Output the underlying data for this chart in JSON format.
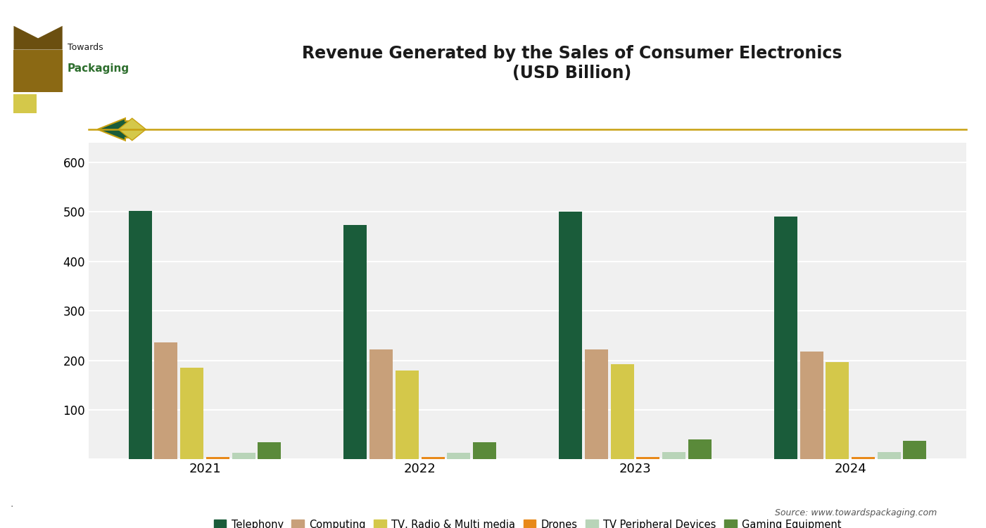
{
  "title": "Revenue Generated by the Sales of Consumer Electronics\n(USD Billion)",
  "years": [
    "2021",
    "2022",
    "2023",
    "2024"
  ],
  "categories": [
    "Telephony",
    "Computing",
    "TV, Radio & Multi media",
    "Drones",
    "TV Peripheral Devices",
    "Gaming Equipment"
  ],
  "values": {
    "Telephony": [
      502,
      473,
      500,
      491
    ],
    "Computing": [
      237,
      222,
      222,
      218
    ],
    "TV, Radio & Multi media": [
      185,
      180,
      192,
      196
    ],
    "Drones": [
      5,
      5,
      5,
      5
    ],
    "TV Peripheral Devices": [
      13,
      13,
      15,
      15
    ],
    "Gaming Equipment": [
      34,
      35,
      40,
      38
    ]
  },
  "colors": {
    "Telephony": "#1a5c3a",
    "Computing": "#c8a07a",
    "TV, Radio & Multi media": "#d4c84a",
    "Drones": "#e8891a",
    "TV Peripheral Devices": "#b8d4b8",
    "Gaming Equipment": "#5a8a3a"
  },
  "ylim": [
    0,
    640
  ],
  "yticks": [
    0,
    100,
    200,
    300,
    400,
    500,
    600
  ],
  "background_color": "#ffffff",
  "plot_bg_color": "#f0f0f0",
  "grid_color": "#ffffff",
  "title_fontsize": 17,
  "source_text": "Source: www.towardspackaging.com",
  "separator_color": "#c8a010",
  "logo_text_towards": "Towards",
  "logo_text_packaging": "Packaging"
}
